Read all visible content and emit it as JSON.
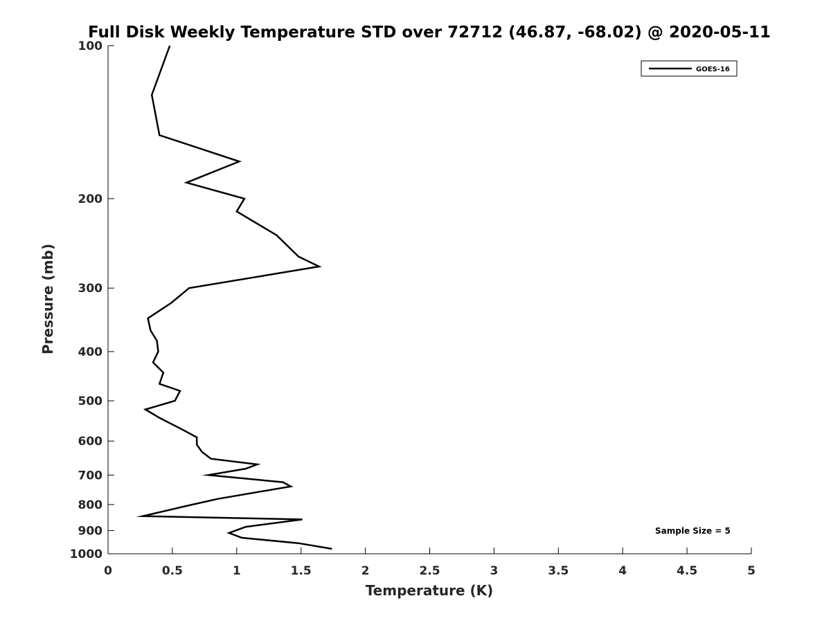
{
  "chart_data": {
    "type": "line",
    "title": "Full Disk Weekly Temperature STD over 72712 (46.87, -68.02) @ 2020-05-11",
    "xlabel": "Temperature (K)",
    "ylabel": "Pressure (mb)",
    "xlim": [
      0,
      5
    ],
    "ylim": [
      100,
      1000
    ],
    "y_scale": "log",
    "y_reversed": true,
    "x_ticks": [
      0,
      0.5,
      1,
      1.5,
      2,
      2.5,
      3,
      3.5,
      4,
      4.5,
      5
    ],
    "x_tick_labels": [
      "0",
      "0.5",
      "1",
      "1.5",
      "2",
      "2.5",
      "3",
      "3.5",
      "4",
      "4.5",
      "5"
    ],
    "y_ticks": [
      100,
      200,
      300,
      400,
      500,
      600,
      700,
      800,
      900,
      1000
    ],
    "y_tick_labels": [
      "100",
      "200",
      "300",
      "400",
      "500",
      "600",
      "700",
      "800",
      "900",
      "1000"
    ],
    "grid": false,
    "legend_position": "top-right",
    "series": [
      {
        "name": "GOES-16",
        "color": "#000000",
        "points": [
          [
            0.48,
            100
          ],
          [
            0.34,
            125
          ],
          [
            0.4,
            150
          ],
          [
            1.02,
            169
          ],
          [
            0.61,
            186
          ],
          [
            1.06,
            200
          ],
          [
            1.0,
            212
          ],
          [
            1.31,
            236
          ],
          [
            1.48,
            260
          ],
          [
            1.64,
            272
          ],
          [
            0.63,
            300
          ],
          [
            0.49,
            321
          ],
          [
            0.31,
            344
          ],
          [
            0.33,
            363
          ],
          [
            0.38,
            381
          ],
          [
            0.39,
            400
          ],
          [
            0.35,
            420
          ],
          [
            0.43,
            440
          ],
          [
            0.4,
            463
          ],
          [
            0.56,
            478
          ],
          [
            0.52,
            500
          ],
          [
            0.29,
            520
          ],
          [
            0.4,
            540
          ],
          [
            0.58,
            570
          ],
          [
            0.69,
            590
          ],
          [
            0.69,
            610
          ],
          [
            0.73,
            630
          ],
          [
            0.8,
            650
          ],
          [
            1.16,
            667
          ],
          [
            1.07,
            680
          ],
          [
            0.78,
            700
          ],
          [
            1.36,
            723
          ],
          [
            1.42,
            737
          ],
          [
            0.85,
            780
          ],
          [
            0.61,
            805
          ],
          [
            0.27,
            843
          ],
          [
            1.51,
            856
          ],
          [
            1.07,
            885
          ],
          [
            0.94,
            910
          ],
          [
            1.04,
            930
          ],
          [
            1.48,
            953
          ],
          [
            1.74,
            978
          ]
        ]
      }
    ],
    "annotations": [
      "Sample Size = 5"
    ]
  }
}
